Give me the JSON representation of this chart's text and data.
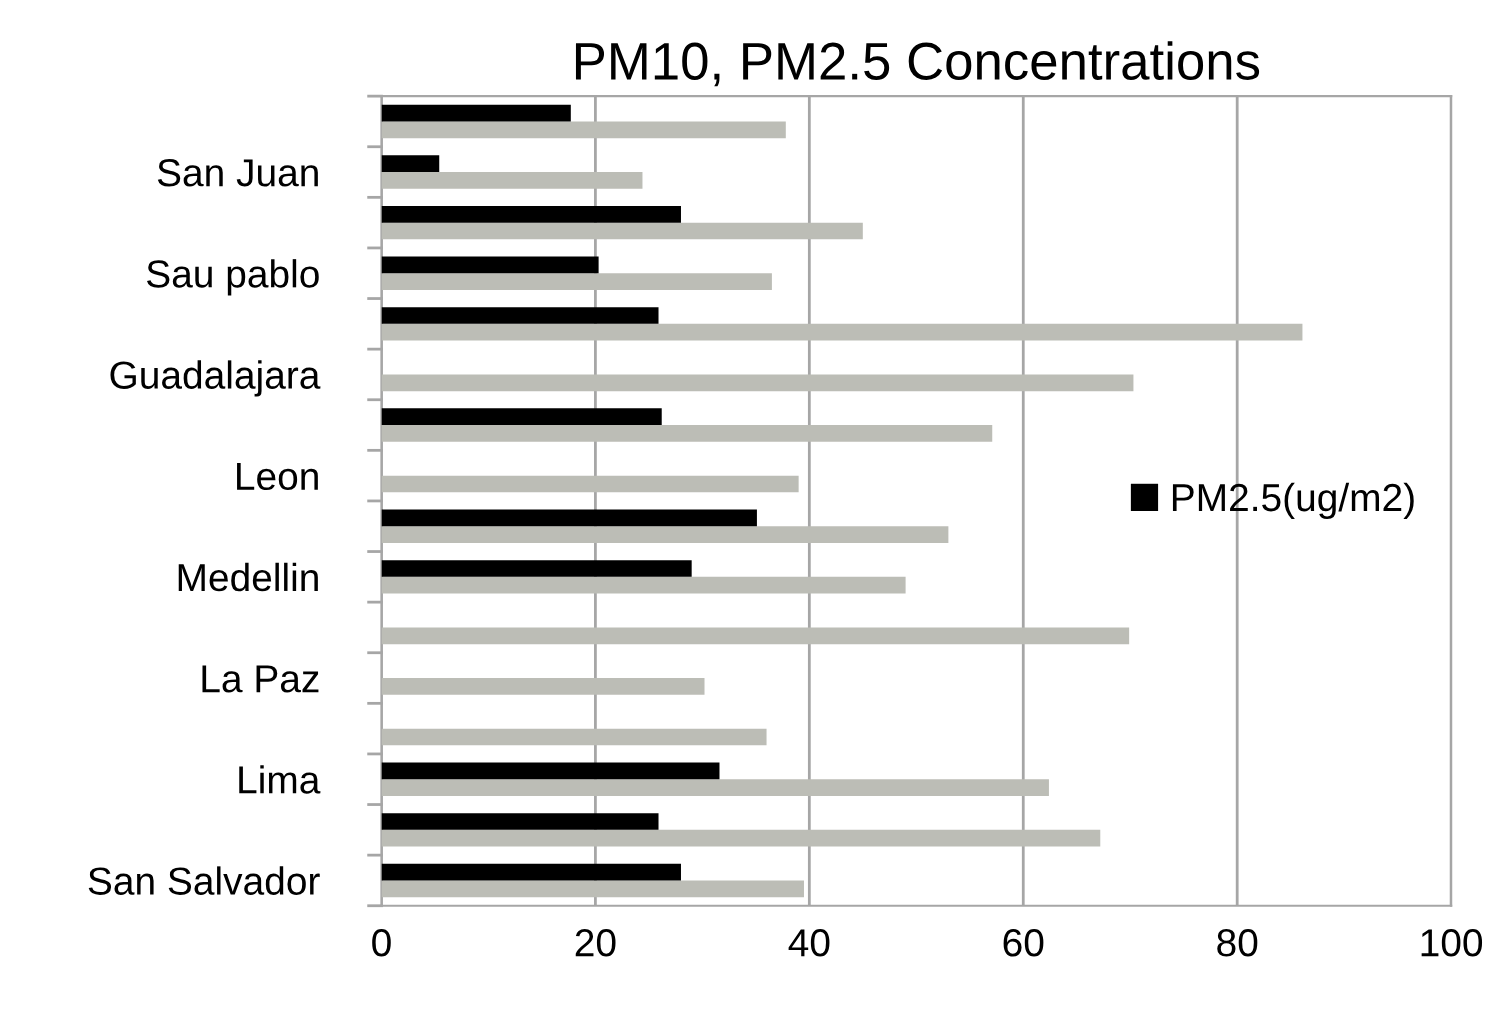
{
  "chart_data": {
    "type": "bar",
    "orientation": "horizontal",
    "title": "PM10, PM2.5 Concentrations",
    "categories": [
      null,
      "San Juan",
      null,
      "Sau pablo",
      null,
      "Guadalajara",
      null,
      "Leon",
      null,
      "Medellin",
      null,
      "La Paz",
      null,
      "Lima",
      null,
      "San Salvador"
    ],
    "series": [
      {
        "color": "#bcbdb6",
        "values": [
          37.8,
          24.4,
          45,
          36.5,
          86.1,
          70.3,
          57.1,
          39,
          53,
          49,
          69.9,
          30.2,
          36,
          62.4,
          67.2,
          39.5
        ]
      },
      {
        "name": "PM2.5(ug/m2)",
        "color": "#000000",
        "values": [
          17.7,
          5.4,
          28,
          20.3,
          25.9,
          null,
          26.2,
          null,
          35.1,
          29,
          null,
          null,
          null,
          31.6,
          25.9,
          28
        ]
      }
    ],
    "xlim": [
      0,
      100
    ],
    "xticks": [
      0,
      20,
      40,
      60,
      80,
      100
    ],
    "grid": "x",
    "legend": "right"
  }
}
